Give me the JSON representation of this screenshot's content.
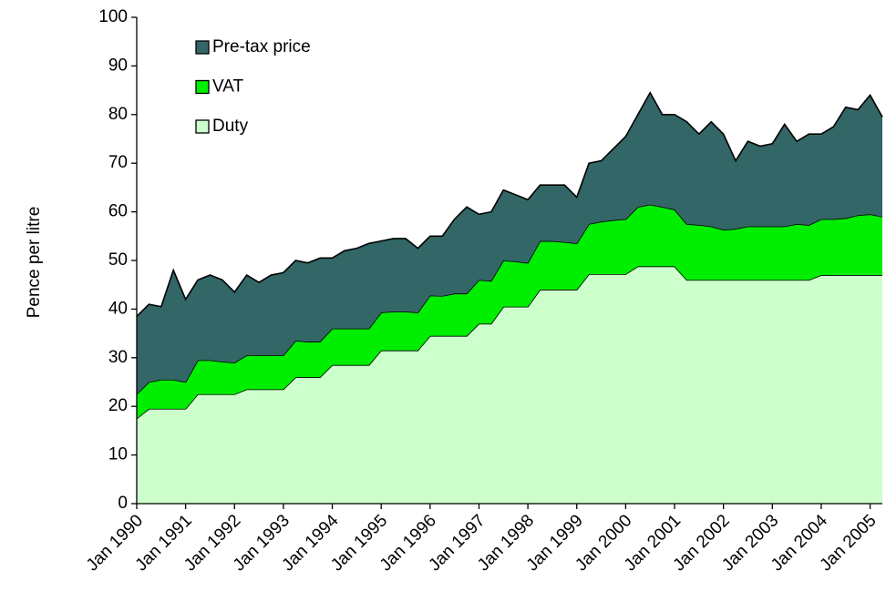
{
  "chart_data": {
    "type": "stacked-area",
    "y_label": "Pence per litre",
    "categories": [
      "Jan 1990",
      null,
      null,
      null,
      "Jan 1991",
      null,
      null,
      null,
      "Jan 1992",
      null,
      null,
      null,
      "Jan 1993",
      null,
      null,
      null,
      "Jan 1994",
      null,
      null,
      null,
      "Jan 1995",
      null,
      null,
      null,
      "Jan 1996",
      null,
      null,
      null,
      "Jan 1997",
      null,
      null,
      null,
      "Jan 1998",
      null,
      null,
      null,
      "Jan 1999",
      null,
      null,
      null,
      "Jan 2000",
      null,
      null,
      null,
      "Jan 2001",
      null,
      null,
      null,
      "Jan 2002",
      null,
      null,
      null,
      "Jan 2003",
      null,
      null,
      null,
      "Jan 2004",
      null,
      null,
      null,
      "Jan 2005",
      null
    ],
    "series": [
      {
        "name": "Duty",
        "color": "#ccffcc",
        "values": [
          17.5,
          19.5,
          19.5,
          19.5,
          19.5,
          22.5,
          22.5,
          22.5,
          22.5,
          23.5,
          23.5,
          23.5,
          23.5,
          26,
          26,
          26,
          28.5,
          28.5,
          28.5,
          28.5,
          31.5,
          31.5,
          31.5,
          31.5,
          34.5,
          34.5,
          34.5,
          34.5,
          37,
          37,
          40.5,
          40.5,
          40.5,
          44,
          44,
          44,
          44,
          47.2,
          47.2,
          47.2,
          47.2,
          48.8,
          48.8,
          48.8,
          48.8,
          46,
          46,
          46,
          46,
          46,
          46,
          46,
          46,
          46,
          46,
          46,
          47,
          47,
          47,
          47,
          47,
          47
        ]
      },
      {
        "name": "VAT",
        "color": "#00ee00",
        "values": [
          5.0,
          5.5,
          6.0,
          6.0,
          5.5,
          7.0,
          7.0,
          6.7,
          6.5,
          7.0,
          7.0,
          7.0,
          7.0,
          7.5,
          7.3,
          7.3,
          7.5,
          7.5,
          7.5,
          7.5,
          7.8,
          8.0,
          8.0,
          7.8,
          8.3,
          8.2,
          8.7,
          8.7,
          9.0,
          8.8,
          9.5,
          9.3,
          9.0,
          10.0,
          10.0,
          9.8,
          9.5,
          10.3,
          10.8,
          11.1,
          11.3,
          12.2,
          12.7,
          12.2,
          11.7,
          11.5,
          11.3,
          11.0,
          10.3,
          10.5,
          11.0,
          11.0,
          11.0,
          11.0,
          11.5,
          11.3,
          11.5,
          11.5,
          11.7,
          12.3,
          12.5,
          12.0
        ]
      },
      {
        "name": "Pre-tax price",
        "color": "#336666",
        "values": [
          16.0,
          16.0,
          15.0,
          22.5,
          17.0,
          16.5,
          17.5,
          16.8,
          14.5,
          16.5,
          15.0,
          16.5,
          17.0,
          16.5,
          16.2,
          17.2,
          14.5,
          16.0,
          16.5,
          17.5,
          14.7,
          15.0,
          15.0,
          13.2,
          12.2,
          12.3,
          15.3,
          17.8,
          13.5,
          14.2,
          14.5,
          13.7,
          13.0,
          11.5,
          11.5,
          11.7,
          9.5,
          12.5,
          12.5,
          14.7,
          17.0,
          19.0,
          23.0,
          19.0,
          19.5,
          21.0,
          18.7,
          21.5,
          19.7,
          14.0,
          17.5,
          16.5,
          17.0,
          21.0,
          17.0,
          18.7,
          17.5,
          19.0,
          22.8,
          21.7,
          24.5,
          20.5
        ]
      }
    ],
    "ylim": [
      0,
      100
    ],
    "yticks": [
      0,
      10,
      20,
      30,
      40,
      50,
      60,
      70,
      80,
      90,
      100
    ],
    "legend": "upper left"
  }
}
